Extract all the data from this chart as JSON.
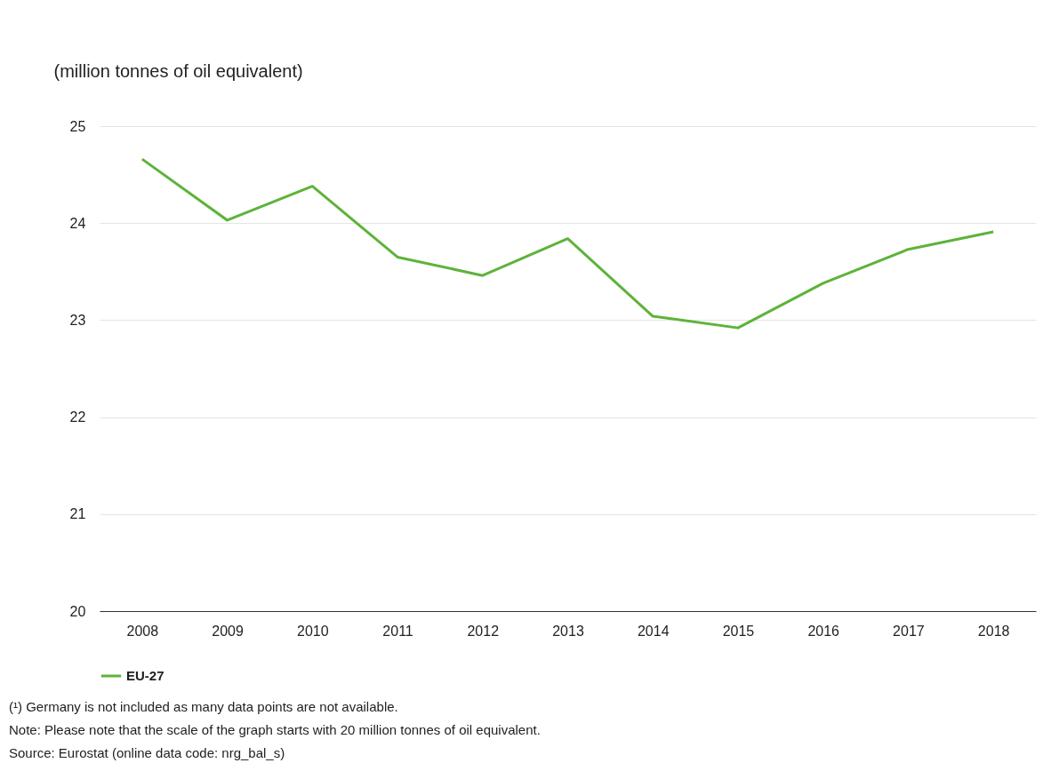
{
  "chart_data": {
    "type": "line",
    "ylabel": "(million tonnes of oil equivalent)",
    "categories": [
      "2008",
      "2009",
      "2010",
      "2011",
      "2012",
      "2013",
      "2014",
      "2015",
      "2016",
      "2017",
      "2018"
    ],
    "series": [
      {
        "name": "EU-27",
        "color": "#5db33a",
        "values": [
          24.66,
          24.03,
          24.38,
          23.65,
          23.46,
          23.84,
          23.04,
          22.92,
          23.38,
          23.73,
          23.91
        ]
      }
    ],
    "ylim": [
      20,
      25
    ],
    "yticks": [
      20,
      21,
      22,
      23,
      24,
      25
    ],
    "grid": "y",
    "legend": "bottom",
    "marker": "none",
    "line_style": "solid",
    "annotations": [
      "(¹) Germany is not included as many data points are not available.",
      "Note: Please note that the scale of the graph starts with 20 million tonnes of oil equivalent.",
      "Source: Eurostat (online data code: nrg_bal_s)"
    ]
  }
}
